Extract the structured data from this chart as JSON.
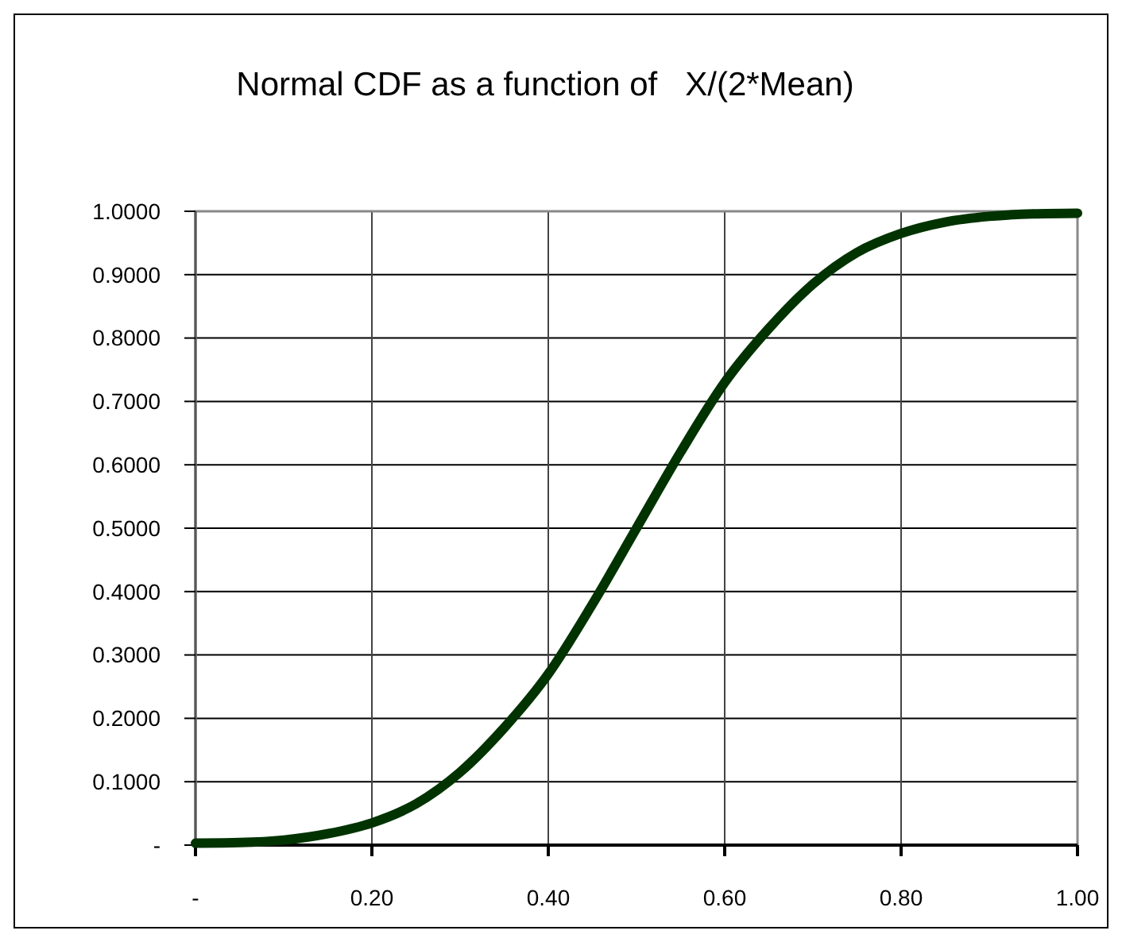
{
  "chart_data": {
    "type": "line",
    "title": "Normal CDF as a function of   X/(2*Mean)",
    "x": [
      0,
      0.05,
      0.1,
      0.15,
      0.2,
      0.25,
      0.3,
      0.35,
      0.4,
      0.45,
      0.5,
      0.55,
      0.6,
      0.65,
      0.7,
      0.75,
      0.8,
      0.85,
      0.9,
      0.95,
      1.0
    ],
    "series": [
      {
        "color": "#013301",
        "values": [
          0.003,
          0.004,
          0.008,
          0.018,
          0.035,
          0.065,
          0.115,
          0.185,
          0.27,
          0.38,
          0.5,
          0.62,
          0.73,
          0.815,
          0.885,
          0.935,
          0.965,
          0.983,
          0.992,
          0.996,
          0.997
        ]
      }
    ],
    "xlim": [
      0,
      1
    ],
    "xticks": [
      {
        "value": 0,
        "label": "-"
      },
      {
        "value": 0.2,
        "label": "0.20"
      },
      {
        "value": 0.4,
        "label": "0.40"
      },
      {
        "value": 0.6,
        "label": "0.60"
      },
      {
        "value": 0.8,
        "label": "0.80"
      },
      {
        "value": 1,
        "label": "1.00"
      }
    ],
    "ylim": [
      0,
      1
    ],
    "yticks": [
      {
        "value": 0,
        "label": "-"
      },
      {
        "value": 0.1,
        "label": "0.1000"
      },
      {
        "value": 0.2,
        "label": "0.2000"
      },
      {
        "value": 0.3,
        "label": "0.3000"
      },
      {
        "value": 0.4,
        "label": "0.4000"
      },
      {
        "value": 0.5,
        "label": "0.5000"
      },
      {
        "value": 0.6,
        "label": "0.6000"
      },
      {
        "value": 0.7,
        "label": "0.7000"
      },
      {
        "value": 0.8,
        "label": "0.8000"
      },
      {
        "value": 0.9,
        "label": "0.9000"
      },
      {
        "value": 1,
        "label": "1.0000"
      }
    ],
    "grid": true,
    "marker": "none",
    "line_style": "solid"
  }
}
